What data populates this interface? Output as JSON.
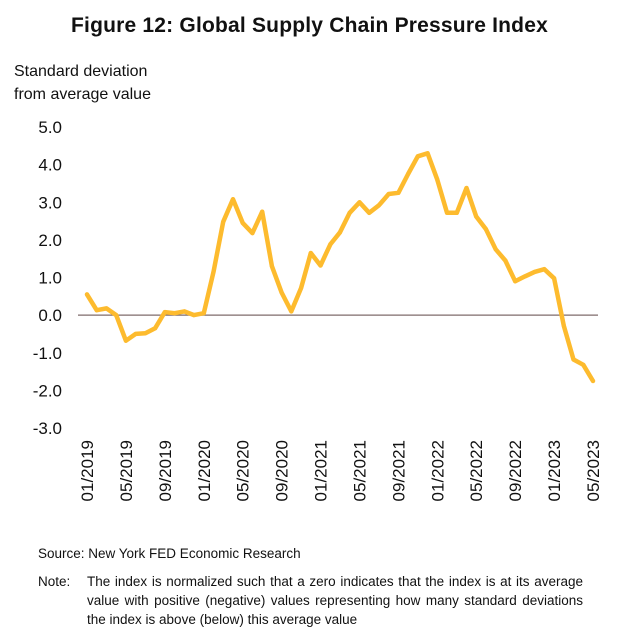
{
  "title": "Figure 12: Global Supply Chain Pressure Index",
  "ylabel_lines": [
    "Standard deviation",
    "from average value"
  ],
  "source": "Source: New York FED Economic Research",
  "note_label": "Note:",
  "note_text": "The index is normalized such that a zero indicates that the index is at its average value with positive (negative) values representing how many standard deviations the index is above (below) this average value",
  "chart_data": {
    "type": "line",
    "title": "Figure 12: Global Supply Chain Pressure Index",
    "ylabel": "Standard deviation from average value",
    "xlabel": "",
    "ylim": [
      -3.0,
      5.0
    ],
    "yticks": [
      "5.0",
      "4.0",
      "3.0",
      "2.0",
      "1.0",
      "0.0",
      "-1.0",
      "-2.0",
      "-3.0"
    ],
    "ytick_values": [
      5,
      4,
      3,
      2,
      1,
      0,
      -1,
      -2,
      -3
    ],
    "xtick_labels": [
      "01/2019",
      "05/2019",
      "09/2019",
      "01/2020",
      "05/2020",
      "09/2020",
      "01/2021",
      "05/2021",
      "09/2021",
      "01/2022",
      "05/2022",
      "09/2022",
      "01/2023",
      "05/2023"
    ],
    "grid": false,
    "zero_line": true,
    "line_color": "#FDBB2E",
    "zero_line_color": "#7F6B6B",
    "series": [
      {
        "x": [
          "01/2019",
          "02/2019",
          "03/2019",
          "04/2019",
          "05/2019",
          "06/2019",
          "07/2019",
          "08/2019",
          "09/2019",
          "10/2019",
          "11/2019",
          "12/2019",
          "01/2020",
          "02/2020",
          "03/2020",
          "04/2020",
          "05/2020",
          "06/2020",
          "07/2020",
          "08/2020",
          "09/2020",
          "10/2020",
          "11/2020",
          "12/2020",
          "01/2021",
          "02/2021",
          "03/2021",
          "04/2021",
          "05/2021",
          "06/2021",
          "07/2021",
          "08/2021",
          "09/2021",
          "10/2021",
          "11/2021",
          "12/2021",
          "01/2022",
          "02/2022",
          "03/2022",
          "04/2022",
          "05/2022",
          "06/2022",
          "07/2022",
          "08/2022",
          "09/2022",
          "10/2022",
          "11/2022",
          "12/2022",
          "01/2023",
          "02/2023",
          "03/2023",
          "04/2023",
          "05/2023"
        ],
        "values": [
          0.55,
          0.13,
          0.18,
          0.0,
          -0.68,
          -0.5,
          -0.48,
          -0.35,
          0.08,
          0.05,
          0.1,
          0.0,
          0.05,
          1.15,
          2.48,
          3.08,
          2.45,
          2.18,
          2.75,
          1.3,
          0.6,
          0.1,
          0.72,
          1.65,
          1.32,
          1.88,
          2.2,
          2.72,
          3.0,
          2.72,
          2.92,
          3.22,
          3.25,
          3.75,
          4.22,
          4.3,
          3.6,
          2.72,
          2.72,
          3.38,
          2.62,
          2.28,
          1.75,
          1.45,
          0.9,
          1.03,
          1.15,
          1.22,
          0.98,
          -0.28,
          -1.18,
          -1.32,
          -1.75
        ]
      }
    ]
  }
}
